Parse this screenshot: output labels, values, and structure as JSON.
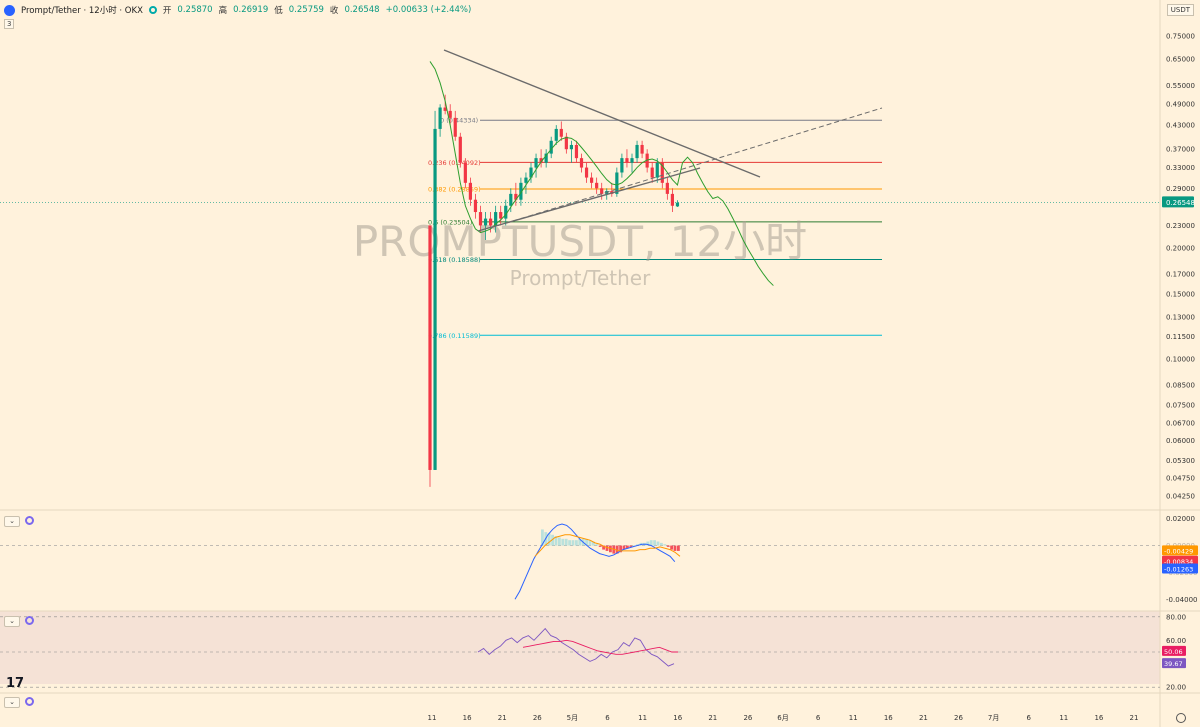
{
  "header": {
    "title": "Prompt/Tether · 12小时 · OKX",
    "open_label": "开",
    "open": "0.25870",
    "high_label": "高",
    "high": "0.26919",
    "low_label": "低",
    "low": "0.25759",
    "close_label": "收",
    "close": "0.26548",
    "change": "+0.00633 (+2.44%)",
    "indicator_count": "3"
  },
  "currency": "USDT",
  "watermark": {
    "symbol": "PROMPTUSDT, 12小时",
    "name": "Prompt/Tether"
  },
  "colors": {
    "up": "#089981",
    "down": "#f23645",
    "background": "#fff2dc",
    "fib_red": "#e53935",
    "fib_orange": "#ff9800",
    "fib_green": "#2e7d32",
    "fib_teal": "#00897b",
    "fib_cyan": "#00bcd4",
    "sma": "#2e9e2e",
    "macd": "#2962ff",
    "signal": "#ff9800",
    "rsi": "#7e57c2",
    "rsi_ma": "#e91e63"
  },
  "chart_data": [
    {
      "type": "candlestick",
      "symbol": "PROMPTUSDT",
      "interval": "12小时",
      "exchange": "OKX",
      "y_scale": "log",
      "y_ticks": [
        "0.75000",
        "0.65000",
        "0.55000",
        "0.49000",
        "0.43000",
        "0.37000",
        "0.33000",
        "0.29000",
        "0.23000",
        "0.20000",
        "0.17000",
        "0.15000",
        "0.13000",
        "0.11500",
        "0.10000",
        "0.08500",
        "0.07500",
        "0.06700",
        "0.06000",
        "0.05300",
        "0.04750",
        "0.04250"
      ],
      "current_price": "0.26548",
      "x_ticks": [
        "11",
        "16",
        "21",
        "26",
        "5月",
        "6",
        "11",
        "16",
        "21",
        "26",
        "6月",
        "6",
        "11",
        "16",
        "21",
        "26",
        "7月",
        "6",
        "11",
        "16",
        "21"
      ],
      "candles": [
        [
          0.23,
          0.23,
          0.045,
          0.05
        ],
        [
          0.05,
          0.47,
          0.05,
          0.42
        ],
        [
          0.42,
          0.49,
          0.4,
          0.48
        ],
        [
          0.48,
          0.52,
          0.46,
          0.47
        ],
        [
          0.47,
          0.49,
          0.43,
          0.45
        ],
        [
          0.45,
          0.47,
          0.39,
          0.4
        ],
        [
          0.4,
          0.41,
          0.33,
          0.34
        ],
        [
          0.34,
          0.35,
          0.29,
          0.3
        ],
        [
          0.3,
          0.31,
          0.26,
          0.27
        ],
        [
          0.27,
          0.28,
          0.24,
          0.25
        ],
        [
          0.25,
          0.26,
          0.22,
          0.23
        ],
        [
          0.23,
          0.25,
          0.21,
          0.24
        ],
        [
          0.24,
          0.25,
          0.22,
          0.23
        ],
        [
          0.23,
          0.26,
          0.22,
          0.25
        ],
        [
          0.25,
          0.26,
          0.23,
          0.24
        ],
        [
          0.24,
          0.27,
          0.23,
          0.26
        ],
        [
          0.26,
          0.29,
          0.25,
          0.28
        ],
        [
          0.28,
          0.3,
          0.26,
          0.27
        ],
        [
          0.27,
          0.31,
          0.26,
          0.3
        ],
        [
          0.3,
          0.32,
          0.28,
          0.31
        ],
        [
          0.31,
          0.34,
          0.3,
          0.33
        ],
        [
          0.33,
          0.36,
          0.31,
          0.35
        ],
        [
          0.35,
          0.37,
          0.33,
          0.34
        ],
        [
          0.34,
          0.37,
          0.33,
          0.36
        ],
        [
          0.36,
          0.4,
          0.35,
          0.39
        ],
        [
          0.39,
          0.43,
          0.38,
          0.42
        ],
        [
          0.42,
          0.44,
          0.39,
          0.4
        ],
        [
          0.4,
          0.41,
          0.36,
          0.37
        ],
        [
          0.37,
          0.39,
          0.34,
          0.38
        ],
        [
          0.38,
          0.39,
          0.34,
          0.35
        ],
        [
          0.35,
          0.36,
          0.32,
          0.33
        ],
        [
          0.33,
          0.34,
          0.3,
          0.31
        ],
        [
          0.31,
          0.32,
          0.29,
          0.3
        ],
        [
          0.3,
          0.31,
          0.28,
          0.29
        ],
        [
          0.29,
          0.3,
          0.27,
          0.28
        ],
        [
          0.28,
          0.29,
          0.27,
          0.285
        ],
        [
          0.285,
          0.3,
          0.275,
          0.28
        ],
        [
          0.28,
          0.33,
          0.275,
          0.32
        ],
        [
          0.32,
          0.36,
          0.31,
          0.35
        ],
        [
          0.35,
          0.37,
          0.33,
          0.34
        ],
        [
          0.34,
          0.36,
          0.32,
          0.35
        ],
        [
          0.35,
          0.39,
          0.34,
          0.38
        ],
        [
          0.38,
          0.39,
          0.35,
          0.36
        ],
        [
          0.36,
          0.37,
          0.32,
          0.33
        ],
        [
          0.33,
          0.34,
          0.3,
          0.31
        ],
        [
          0.31,
          0.35,
          0.3,
          0.34
        ],
        [
          0.34,
          0.35,
          0.29,
          0.3
        ],
        [
          0.3,
          0.31,
          0.27,
          0.28
        ],
        [
          0.28,
          0.29,
          0.25,
          0.26
        ],
        [
          0.259,
          0.269,
          0.258,
          0.265
        ]
      ],
      "sma": [
        0.64,
        0.61,
        0.56,
        0.5,
        0.43,
        0.36,
        0.3,
        0.26,
        0.24,
        0.225,
        0.22,
        0.222,
        0.225,
        0.232,
        0.238,
        0.246,
        0.258,
        0.27,
        0.282,
        0.296,
        0.31,
        0.326,
        0.342,
        0.356,
        0.37,
        0.384,
        0.394,
        0.398,
        0.396,
        0.388,
        0.374,
        0.36,
        0.346,
        0.332,
        0.318,
        0.306,
        0.298,
        0.296,
        0.3,
        0.308,
        0.318,
        0.33,
        0.34,
        0.346,
        0.348,
        0.344,
        0.334,
        0.32,
        0.306,
        0.296,
        0.34,
        0.352,
        0.34,
        0.318,
        0.3,
        0.284,
        0.272,
        0.275,
        0.268,
        0.255,
        0.24,
        0.225,
        0.21,
        0.198,
        0.188,
        0.178,
        0.17,
        0.163,
        0.158
      ],
      "fib_levels": [
        {
          "label": "0.236 (0.34092)",
          "value": 0.34092,
          "color": "#e53935"
        },
        {
          "label": "0.382 (0.28859)",
          "value": 0.28859,
          "color": "#ff9800"
        },
        {
          "label": "0.5 (0.23504)",
          "value": 0.23504,
          "color": "#2e7d32"
        },
        {
          "label": "0.618 (0.18588)",
          "value": 0.18588,
          "color": "#00897b"
        },
        {
          "label": "0.786 (0.11589)",
          "value": 0.11589,
          "color": "#00bcd4"
        },
        {
          "label": "0 (0.44334)",
          "value": 0.44334,
          "color": "#787b86"
        }
      ]
    },
    {
      "type": "macd",
      "y_ticks": [
        "0.02000",
        "-0.04000"
      ],
      "hidden_ticks": [
        "0.00000",
        "-0.02000"
      ],
      "ylim": [
        -0.045,
        0.022
      ],
      "values": {
        "histogram": "-0.00429",
        "macd": "-0.00834",
        "signal": "-0.01263"
      },
      "histogram": [
        0.012,
        0.01,
        0.009,
        0.008,
        0.007,
        0.006,
        0.005,
        0.005,
        0.004,
        0.004,
        0.004,
        0.005,
        0.005,
        0.005,
        0.004,
        0.003,
        0.001,
        -0.001,
        -0.003,
        -0.004,
        -0.005,
        -0.006,
        -0.006,
        -0.005,
        -0.003,
        -0.002,
        -0.001,
        0.0,
        0.001,
        0.002,
        0.002,
        0.003,
        0.004,
        0.004,
        0.003,
        0.002,
        0.001,
        -0.001,
        -0.003,
        -0.004,
        -0.004
      ],
      "macd": [
        -0.04,
        -0.034,
        -0.026,
        -0.018,
        -0.01,
        -0.004,
        0.002,
        0.008,
        0.012,
        0.015,
        0.016,
        0.015,
        0.012,
        0.008,
        0.004,
        0.001,
        -0.002,
        -0.004,
        -0.006,
        -0.007,
        -0.008,
        -0.007,
        -0.005,
        -0.003,
        -0.002,
        -0.001,
        0.0,
        0.001,
        0.001,
        0.0,
        -0.002,
        -0.004,
        -0.006,
        -0.008,
        -0.012
      ],
      "signal": [
        -0.008,
        -0.004,
        0.0,
        0.003,
        0.006,
        0.007,
        0.008,
        0.008,
        0.007,
        0.006,
        0.005,
        0.004,
        0.002,
        0.001,
        -0.001,
        -0.002,
        -0.003,
        -0.004,
        -0.004,
        -0.004,
        -0.004,
        -0.003,
        -0.003,
        -0.002,
        -0.002,
        -0.001,
        -0.002,
        -0.003,
        -0.005,
        -0.008
      ]
    },
    {
      "type": "rsi",
      "y_ticks": [
        "80.00",
        "60.00",
        "20.00"
      ],
      "ylim": [
        15,
        85
      ],
      "values": {
        "rsi_ma": "50.06",
        "rsi": "39.67"
      },
      "rsi": [
        50,
        53,
        48,
        52,
        55,
        60,
        62,
        58,
        62,
        64,
        60,
        65,
        70,
        64,
        62,
        58,
        55,
        52,
        48,
        45,
        42,
        44,
        48,
        45,
        50,
        52,
        58,
        55,
        62,
        60,
        52,
        48,
        46,
        42,
        38,
        40
      ],
      "rsi_ma": [
        54,
        55,
        56,
        57,
        58,
        59,
        59,
        60,
        59,
        57,
        55,
        53,
        51,
        50,
        49,
        48,
        48,
        49,
        50,
        51,
        52,
        53,
        54,
        52,
        50,
        50
      ]
    }
  ]
}
